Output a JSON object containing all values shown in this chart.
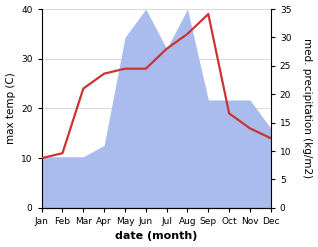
{
  "months": [
    "Jan",
    "Feb",
    "Mar",
    "Apr",
    "May",
    "Jun",
    "Jul",
    "Aug",
    "Sep",
    "Oct",
    "Nov",
    "Dec"
  ],
  "temperature": [
    10,
    11,
    24,
    27,
    28,
    28,
    32,
    35,
    39,
    19,
    16,
    14
  ],
  "precipitation": [
    9,
    9,
    9,
    11,
    30,
    35,
    28,
    35,
    19,
    19,
    19,
    14
  ],
  "temp_color": "#cc3333",
  "precip_color": "#aabbee",
  "temp_ylim": [
    0,
    40
  ],
  "precip_ylim": [
    0,
    35
  ],
  "temp_yticks": [
    0,
    10,
    20,
    30,
    40
  ],
  "precip_yticks": [
    0,
    5,
    10,
    15,
    20,
    25,
    30,
    35
  ],
  "ylabel_left": "max temp (C)",
  "ylabel_right": "med. precipitation (kg/m2)",
  "xlabel": "date (month)",
  "bg_color": "#ffffff",
  "label_fontsize": 7.5,
  "tick_fontsize": 6.5,
  "xlabel_fontsize": 8,
  "line_width": 1.6
}
